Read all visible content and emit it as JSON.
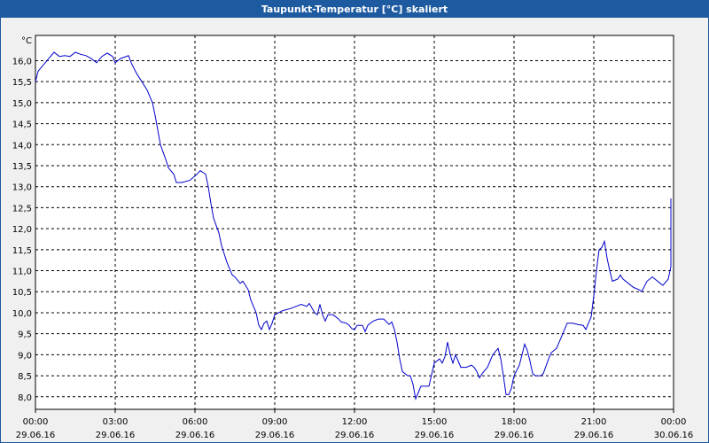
{
  "window": {
    "title": "Taupunkt-Temperatur [°C] skaliert"
  },
  "colors": {
    "line": "#0000cc",
    "grid": "#000000",
    "titlebar": "#1d5aa0",
    "plot_bg": "#ffffff"
  },
  "chart_data": {
    "type": "line",
    "title": "Taupunkt-Temperatur [°C] skaliert",
    "ylabel": "°C",
    "xlabel": "",
    "ylim": [
      7.7,
      16.6
    ],
    "y_ticks": [
      "16,0",
      "15,5",
      "15,0",
      "14,5",
      "14,0",
      "13,5",
      "13,0",
      "12,5",
      "12,0",
      "11,5",
      "11,0",
      "10,5",
      "10,0",
      "9,5",
      "9,0",
      "8,5",
      "8,0"
    ],
    "y_tick_values": [
      16.0,
      15.5,
      15.0,
      14.5,
      14.0,
      13.5,
      13.0,
      12.5,
      12.0,
      11.5,
      11.0,
      10.5,
      10.0,
      9.5,
      9.0,
      8.5,
      8.0
    ],
    "x_ticks": [
      {
        "time": "00:00",
        "date": "29.06.16",
        "hours": 0
      },
      {
        "time": "03:00",
        "date": "29.06.16",
        "hours": 3
      },
      {
        "time": "06:00",
        "date": "29.06.16",
        "hours": 6
      },
      {
        "time": "09:00",
        "date": "29.06.16",
        "hours": 9
      },
      {
        "time": "12:00",
        "date": "29.06.16",
        "hours": 12
      },
      {
        "time": "15:00",
        "date": "29.06.16",
        "hours": 15
      },
      {
        "time": "18:00",
        "date": "29.06.16",
        "hours": 18
      },
      {
        "time": "21:00",
        "date": "29.06.16",
        "hours": 21
      },
      {
        "time": "00:00",
        "date": "30.06.16",
        "hours": 24
      }
    ],
    "xlim_hours": [
      0,
      24
    ],
    "grid": true,
    "series": [
      {
        "points": [
          [
            0.0,
            15.5
          ],
          [
            0.1,
            15.75
          ],
          [
            0.3,
            15.9
          ],
          [
            0.5,
            16.05
          ],
          [
            0.7,
            16.2
          ],
          [
            0.9,
            16.1
          ],
          [
            1.1,
            16.12
          ],
          [
            1.3,
            16.1
          ],
          [
            1.5,
            16.2
          ],
          [
            1.7,
            16.15
          ],
          [
            1.9,
            16.12
          ],
          [
            2.1,
            16.05
          ],
          [
            2.3,
            15.95
          ],
          [
            2.5,
            16.1
          ],
          [
            2.7,
            16.18
          ],
          [
            2.9,
            16.1
          ],
          [
            3.0,
            15.95
          ],
          [
            3.2,
            16.05
          ],
          [
            3.5,
            16.12
          ],
          [
            3.6,
            15.95
          ],
          [
            3.8,
            15.7
          ],
          [
            4.0,
            15.5
          ],
          [
            4.2,
            15.3
          ],
          [
            4.4,
            15.0
          ],
          [
            4.5,
            14.7
          ],
          [
            4.6,
            14.35
          ],
          [
            4.7,
            14.0
          ],
          [
            4.9,
            13.65
          ],
          [
            5.0,
            13.45
          ],
          [
            5.2,
            13.3
          ],
          [
            5.3,
            13.1
          ],
          [
            5.5,
            13.1
          ],
          [
            5.8,
            13.15
          ],
          [
            6.0,
            13.25
          ],
          [
            6.2,
            13.38
          ],
          [
            6.4,
            13.3
          ],
          [
            6.5,
            13.0
          ],
          [
            6.6,
            12.6
          ],
          [
            6.7,
            12.25
          ],
          [
            6.9,
            11.9
          ],
          [
            7.0,
            11.6
          ],
          [
            7.2,
            11.2
          ],
          [
            7.4,
            10.9
          ],
          [
            7.5,
            10.85
          ],
          [
            7.7,
            10.7
          ],
          [
            7.8,
            10.75
          ],
          [
            8.0,
            10.55
          ],
          [
            8.1,
            10.3
          ],
          [
            8.3,
            10.0
          ],
          [
            8.4,
            9.7
          ],
          [
            8.5,
            9.6
          ],
          [
            8.6,
            9.75
          ],
          [
            8.7,
            9.8
          ],
          [
            8.8,
            9.6
          ],
          [
            8.9,
            9.75
          ],
          [
            9.0,
            9.95
          ],
          [
            9.3,
            10.05
          ],
          [
            9.6,
            10.1
          ],
          [
            9.8,
            10.15
          ],
          [
            10.0,
            10.2
          ],
          [
            10.2,
            10.15
          ],
          [
            10.3,
            10.22
          ],
          [
            10.5,
            10.0
          ],
          [
            10.6,
            9.95
          ],
          [
            10.7,
            10.2
          ],
          [
            10.8,
            9.95
          ],
          [
            10.9,
            9.8
          ],
          [
            11.0,
            9.95
          ],
          [
            11.2,
            9.95
          ],
          [
            11.4,
            9.85
          ],
          [
            11.5,
            9.78
          ],
          [
            11.7,
            9.75
          ],
          [
            11.8,
            9.7
          ],
          [
            11.9,
            9.62
          ],
          [
            12.0,
            9.6
          ],
          [
            12.1,
            9.7
          ],
          [
            12.3,
            9.7
          ],
          [
            12.4,
            9.55
          ],
          [
            12.5,
            9.7
          ],
          [
            12.7,
            9.8
          ],
          [
            12.9,
            9.85
          ],
          [
            13.1,
            9.85
          ],
          [
            13.3,
            9.72
          ],
          [
            13.4,
            9.78
          ],
          [
            13.5,
            9.6
          ],
          [
            13.6,
            9.3
          ],
          [
            13.7,
            8.9
          ],
          [
            13.8,
            8.6
          ],
          [
            14.0,
            8.5
          ],
          [
            14.1,
            8.5
          ],
          [
            14.2,
            8.3
          ],
          [
            14.3,
            7.95
          ],
          [
            14.4,
            8.1
          ],
          [
            14.5,
            8.25
          ],
          [
            14.8,
            8.25
          ],
          [
            15.0,
            8.8
          ],
          [
            15.2,
            8.9
          ],
          [
            15.3,
            8.8
          ],
          [
            15.4,
            8.95
          ],
          [
            15.5,
            9.3
          ],
          [
            15.6,
            9.0
          ],
          [
            15.7,
            8.8
          ],
          [
            15.8,
            9.0
          ],
          [
            15.9,
            8.85
          ],
          [
            16.0,
            8.7
          ],
          [
            16.2,
            8.7
          ],
          [
            16.4,
            8.75
          ],
          [
            16.5,
            8.7
          ],
          [
            16.6,
            8.6
          ],
          [
            16.7,
            8.45
          ],
          [
            16.8,
            8.55
          ],
          [
            17.0,
            8.7
          ],
          [
            17.2,
            9.0
          ],
          [
            17.4,
            9.15
          ],
          [
            17.5,
            8.9
          ],
          [
            17.6,
            8.5
          ],
          [
            17.7,
            8.05
          ],
          [
            17.8,
            8.05
          ],
          [
            17.9,
            8.2
          ],
          [
            18.0,
            8.5
          ],
          [
            18.2,
            8.75
          ],
          [
            18.3,
            9.0
          ],
          [
            18.4,
            9.25
          ],
          [
            18.5,
            9.1
          ],
          [
            18.6,
            8.85
          ],
          [
            18.7,
            8.55
          ],
          [
            18.8,
            8.5
          ],
          [
            19.0,
            8.5
          ],
          [
            19.1,
            8.55
          ],
          [
            19.3,
            8.9
          ],
          [
            19.4,
            9.05
          ],
          [
            19.6,
            9.15
          ],
          [
            19.8,
            9.45
          ],
          [
            20.0,
            9.75
          ],
          [
            20.2,
            9.75
          ],
          [
            20.4,
            9.72
          ],
          [
            20.6,
            9.7
          ],
          [
            20.7,
            9.6
          ],
          [
            20.9,
            9.9
          ],
          [
            21.0,
            10.4
          ],
          [
            21.1,
            11.0
          ],
          [
            21.2,
            11.5
          ],
          [
            21.3,
            11.55
          ],
          [
            21.4,
            11.7
          ],
          [
            21.5,
            11.3
          ],
          [
            21.6,
            11.0
          ],
          [
            21.7,
            10.75
          ],
          [
            21.9,
            10.8
          ],
          [
            22.0,
            10.9
          ],
          [
            22.1,
            10.8
          ],
          [
            22.3,
            10.7
          ],
          [
            22.5,
            10.6
          ],
          [
            22.7,
            10.55
          ],
          [
            22.8,
            10.5
          ],
          [
            23.0,
            10.75
          ],
          [
            23.2,
            10.85
          ],
          [
            23.3,
            10.8
          ],
          [
            23.5,
            10.7
          ],
          [
            23.6,
            10.65
          ],
          [
            23.8,
            10.8
          ],
          [
            23.9,
            11.1
          ],
          [
            24.0,
            11.4
          ],
          [
            24.2,
            11.9
          ],
          [
            24.35,
            12.4
          ],
          [
            24.5,
            12.72
          ]
        ]
      }
    ]
  }
}
